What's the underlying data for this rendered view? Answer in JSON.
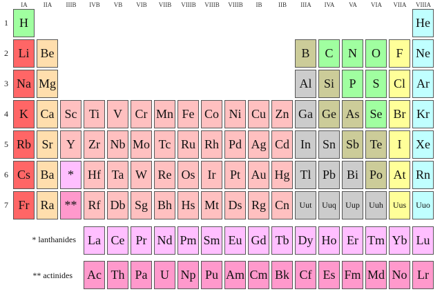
{
  "colors": {
    "alkali": "#ff6666",
    "alkaline": "#ffdead",
    "transition": "#ffc0c0",
    "post": "#cccccc",
    "metalloid": "#cccc99",
    "nonmetal": "#a0ffa0",
    "halogen": "#ffff99",
    "noble": "#c0ffff",
    "lanthanide": "#ffbfff",
    "actinide": "#ff99cc"
  },
  "groups": [
    "IA",
    "IIA",
    "IIIB",
    "IVB",
    "VB",
    "VIB",
    "VIIB",
    "VIIIB",
    "VIIIB",
    "VIIIB",
    "IB",
    "IIB",
    "IIIA",
    "IVA",
    "VA",
    "VIA",
    "VIIA",
    "VIIIA"
  ],
  "periods": [
    "1",
    "2",
    "3",
    "4",
    "5",
    "6",
    "7"
  ],
  "rows": [
    [
      [
        "H",
        0,
        "nonmetal"
      ],
      [
        "He",
        17,
        "noble"
      ]
    ],
    [
      [
        "Li",
        0,
        "alkali"
      ],
      [
        "Be",
        1,
        "alkaline"
      ],
      [
        "B",
        12,
        "metalloid"
      ],
      [
        "C",
        13,
        "nonmetal"
      ],
      [
        "N",
        14,
        "nonmetal"
      ],
      [
        "O",
        15,
        "nonmetal"
      ],
      [
        "F",
        16,
        "halogen"
      ],
      [
        "Ne",
        17,
        "noble"
      ]
    ],
    [
      [
        "Na",
        0,
        "alkali"
      ],
      [
        "Mg",
        1,
        "alkaline"
      ],
      [
        "Al",
        12,
        "post"
      ],
      [
        "Si",
        13,
        "metalloid"
      ],
      [
        "P",
        14,
        "nonmetal"
      ],
      [
        "S",
        15,
        "nonmetal"
      ],
      [
        "Cl",
        16,
        "halogen"
      ],
      [
        "Ar",
        17,
        "noble"
      ]
    ],
    [
      [
        "K",
        0,
        "alkali"
      ],
      [
        "Ca",
        1,
        "alkaline"
      ],
      [
        "Sc",
        2,
        "transition"
      ],
      [
        "Ti",
        3,
        "transition"
      ],
      [
        "V",
        4,
        "transition"
      ],
      [
        "Cr",
        5,
        "transition"
      ],
      [
        "Mn",
        6,
        "transition"
      ],
      [
        "Fe",
        7,
        "transition"
      ],
      [
        "Co",
        8,
        "transition"
      ],
      [
        "Ni",
        9,
        "transition"
      ],
      [
        "Cu",
        10,
        "transition"
      ],
      [
        "Zn",
        11,
        "transition"
      ],
      [
        "Ga",
        12,
        "post"
      ],
      [
        "Ge",
        13,
        "metalloid"
      ],
      [
        "As",
        14,
        "metalloid"
      ],
      [
        "Se",
        15,
        "nonmetal"
      ],
      [
        "Br",
        16,
        "halogen"
      ],
      [
        "Kr",
        17,
        "noble"
      ]
    ],
    [
      [
        "Rb",
        0,
        "alkali"
      ],
      [
        "Sr",
        1,
        "alkaline"
      ],
      [
        "Y",
        2,
        "transition"
      ],
      [
        "Zr",
        3,
        "transition"
      ],
      [
        "Nb",
        4,
        "transition"
      ],
      [
        "Mo",
        5,
        "transition"
      ],
      [
        "Tc",
        6,
        "transition"
      ],
      [
        "Ru",
        7,
        "transition"
      ],
      [
        "Rh",
        8,
        "transition"
      ],
      [
        "Pd",
        9,
        "transition"
      ],
      [
        "Ag",
        10,
        "transition"
      ],
      [
        "Cd",
        11,
        "transition"
      ],
      [
        "In",
        12,
        "post"
      ],
      [
        "Sn",
        13,
        "post"
      ],
      [
        "Sb",
        14,
        "metalloid"
      ],
      [
        "Te",
        15,
        "metalloid"
      ],
      [
        "I",
        16,
        "halogen"
      ],
      [
        "Xe",
        17,
        "noble"
      ]
    ],
    [
      [
        "Cs",
        0,
        "alkali"
      ],
      [
        "Ba",
        1,
        "alkaline"
      ],
      [
        "*",
        2,
        "lanthanide"
      ],
      [
        "Hf",
        3,
        "transition"
      ],
      [
        "Ta",
        4,
        "transition"
      ],
      [
        "W",
        5,
        "transition"
      ],
      [
        "Re",
        6,
        "transition"
      ],
      [
        "Os",
        7,
        "transition"
      ],
      [
        "Ir",
        8,
        "transition"
      ],
      [
        "Pt",
        9,
        "transition"
      ],
      [
        "Au",
        10,
        "transition"
      ],
      [
        "Hg",
        11,
        "transition"
      ],
      [
        "Tl",
        12,
        "post"
      ],
      [
        "Pb",
        13,
        "post"
      ],
      [
        "Bi",
        14,
        "post"
      ],
      [
        "Po",
        15,
        "metalloid"
      ],
      [
        "At",
        16,
        "halogen"
      ],
      [
        "Rn",
        17,
        "noble"
      ]
    ],
    [
      [
        "Fr",
        0,
        "alkali"
      ],
      [
        "Ra",
        1,
        "alkaline"
      ],
      [
        "**",
        2,
        "actinide"
      ],
      [
        "Rf",
        3,
        "transition"
      ],
      [
        "Db",
        4,
        "transition"
      ],
      [
        "Sg",
        5,
        "transition"
      ],
      [
        "Bh",
        6,
        "transition"
      ],
      [
        "Hs",
        7,
        "transition"
      ],
      [
        "Mt",
        8,
        "transition"
      ],
      [
        "Ds",
        9,
        "transition"
      ],
      [
        "Rg",
        10,
        "transition"
      ],
      [
        "Cn",
        11,
        "transition"
      ],
      [
        "Uut",
        12,
        "post"
      ],
      [
        "Uuq",
        13,
        "post"
      ],
      [
        "Uup",
        14,
        "post"
      ],
      [
        "Uuh",
        15,
        "post"
      ],
      [
        "Uus",
        16,
        "halogen"
      ],
      [
        "Uuo",
        17,
        "noble"
      ]
    ]
  ],
  "lanthanides": {
    "label": "* lanthanides",
    "elements": [
      "La",
      "Ce",
      "Pr",
      "Nd",
      "Pm",
      "Sm",
      "Eu",
      "Gd",
      "Tb",
      "Dy",
      "Ho",
      "Er",
      "Tm",
      "Yb",
      "Lu"
    ]
  },
  "actinides": {
    "label": "** actinides",
    "elements": [
      "Ac",
      "Th",
      "Pa",
      "U",
      "Np",
      "Pu",
      "Am",
      "Cm",
      "Bk",
      "Cf",
      "Es",
      "Fm",
      "Md",
      "No",
      "Lr"
    ]
  }
}
